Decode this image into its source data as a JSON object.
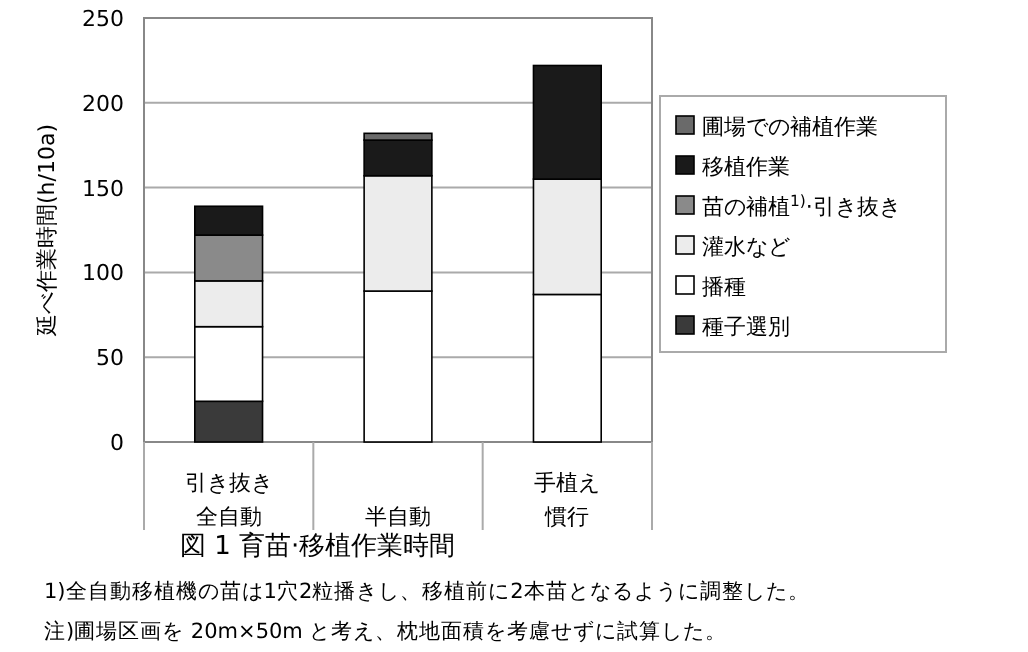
{
  "chart_data": {
    "type": "bar",
    "stacked": true,
    "title": "図 1 育苗·移植作業時間",
    "ylabel": "延べ作業時間(h/10a)",
    "categories": [
      "引き抜き全自動",
      "半自動",
      "手植え慣行"
    ],
    "series": [
      {
        "name": "種子選別",
        "color": "#3a3a3a",
        "values": [
          24,
          0,
          0
        ]
      },
      {
        "name": "播種",
        "color": "#ffffff",
        "values": [
          44,
          89,
          87
        ]
      },
      {
        "name": "灌水など",
        "color": "#ececec",
        "values": [
          27,
          68,
          68
        ]
      },
      {
        "name": "苗の補植$^{1)}$·引き抜き",
        "color": "#8a8a8a",
        "values": [
          27,
          0,
          0
        ]
      },
      {
        "name": "移植作業",
        "color": "#1a1a1a",
        "values": [
          17,
          21,
          67
        ]
      },
      {
        "name": "圃場での補植作業",
        "color": "#6a6a6a",
        "values": [
          0,
          4,
          0
        ]
      }
    ],
    "ylim": [
      0,
      250
    ],
    "yticks": [
      0,
      50,
      100,
      150,
      200,
      250
    ],
    "grid": "y",
    "legend": "right",
    "annotations": [
      "1)全自動移植機の苗は1穴2粒播きし、移植前に2本苗となるように調整した。",
      "注)圃場区画を 20m×50m と考え、枕地面積を考慮せずに試算した。"
    ]
  }
}
